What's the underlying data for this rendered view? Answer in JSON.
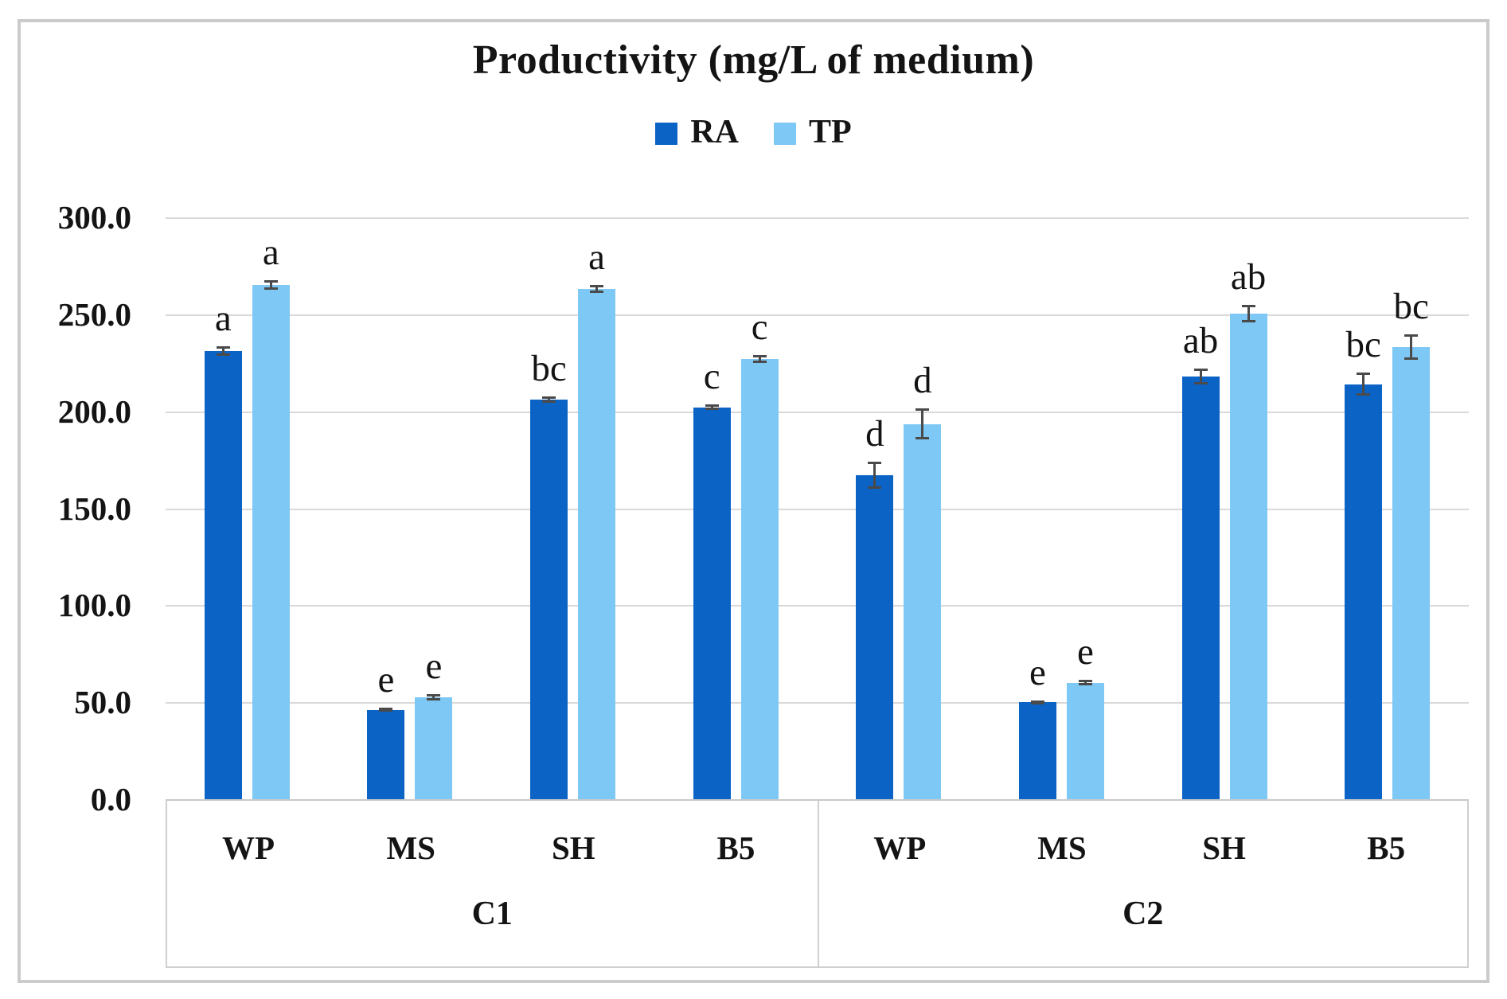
{
  "chart_data": {
    "type": "bar",
    "title": "Productivity (mg/L of medium)",
    "xlabel": "",
    "ylabel": "",
    "ylim": [
      0,
      300
    ],
    "ytick_step": 50,
    "ytick_labels": [
      "300.0",
      "250.0",
      "200.0",
      "150.0",
      "100.0",
      "50.0",
      "0.0"
    ],
    "grid": true,
    "legend_position": "top-center",
    "group_labels": [
      "C1",
      "C2"
    ],
    "categories": [
      "WP",
      "MS",
      "SH",
      "B5",
      "WP",
      "MS",
      "SH",
      "B5"
    ],
    "category_groups": [
      "C1",
      "C1",
      "C1",
      "C1",
      "C2",
      "C2",
      "C2",
      "C2"
    ],
    "series": [
      {
        "name": "RA",
        "color": "#0a63c5",
        "values": [
          231.0,
          46.0,
          206.0,
          202.0,
          167.0,
          50.0,
          218.0,
          214.0
        ],
        "errors": [
          2.5,
          1.0,
          1.5,
          1.5,
          7.0,
          1.0,
          4.0,
          6.0
        ],
        "letters": [
          "a",
          "e",
          "bc",
          "c",
          "d",
          "e",
          "ab",
          "bc"
        ]
      },
      {
        "name": "TP",
        "color": "#7ec8f5",
        "values": [
          265.0,
          52.5,
          263.0,
          227.0,
          193.5,
          60.0,
          250.5,
          233.0
        ],
        "errors": [
          2.5,
          1.5,
          2.0,
          2.0,
          8.0,
          1.5,
          4.5,
          6.5
        ],
        "letters": [
          "a",
          "e",
          "a",
          "c",
          "d",
          "e",
          "ab",
          "bc"
        ]
      }
    ]
  }
}
